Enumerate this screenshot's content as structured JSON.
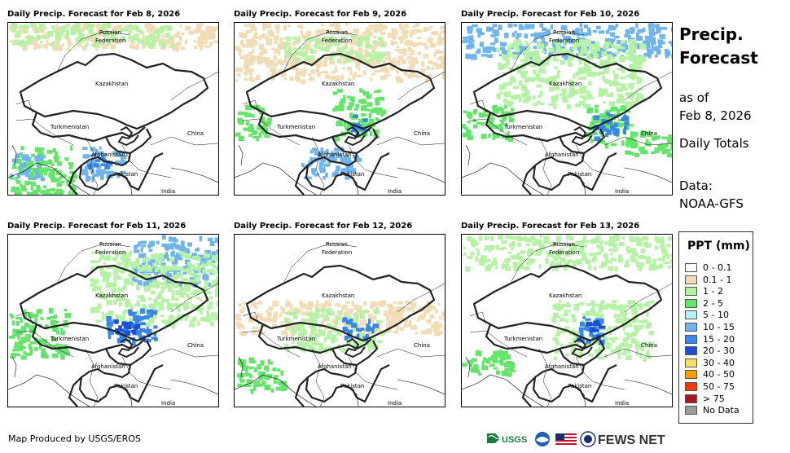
{
  "panels": [
    {
      "title": "Daily Precip. Forecast for Feb 8, 2026"
    },
    {
      "title": "Daily Precip. Forecast for Feb 9, 2026"
    },
    {
      "title": "Daily Precip. Forecast for Feb 10, 2026"
    },
    {
      "title": "Daily Precip. Forecast for Feb 11, 2026"
    },
    {
      "title": "Daily Precip. Forecast for Feb 12, 2026"
    },
    {
      "title": "Daily Precip. Forecast for Feb 13, 2026"
    }
  ],
  "map_labels": {
    "russia_1": "Russian",
    "russia_2": "Federation",
    "kazakhstan": "Kazakhstan",
    "turkmenistan": "Turkmenistan",
    "china": "China",
    "afghanistan": "Afghanistan",
    "pakistan": "Pakistan",
    "india": "India"
  },
  "side": {
    "title_1": "Precip.",
    "title_2": "Forecast",
    "asof_1": "as of",
    "asof_2": "Feb 8, 2026",
    "totals": "Daily Totals",
    "data_1": "Data:",
    "data_2": "NOAA-GFS"
  },
  "legend": {
    "title": "PPT (mm)",
    "items": [
      {
        "label": "0 - 0.1",
        "color": "#ffffff"
      },
      {
        "label": "0.1 - 1",
        "color": "#f1dcb6"
      },
      {
        "label": "1 - 2",
        "color": "#b6f2a6"
      },
      {
        "label": "2 - 5",
        "color": "#64e46a"
      },
      {
        "label": "5 - 10",
        "color": "#b8f0f6"
      },
      {
        "label": "10 - 15",
        "color": "#6fb4ec"
      },
      {
        "label": "15 - 20",
        "color": "#3a86e8"
      },
      {
        "label": "20 - 30",
        "color": "#1a4fd6"
      },
      {
        "label": "30 - 40",
        "color": "#f8e06a"
      },
      {
        "label": "40 - 50",
        "color": "#f5a000"
      },
      {
        "label": "50 - 75",
        "color": "#f03a0a"
      },
      {
        "label": "> 75",
        "color": "#a81a1a"
      },
      {
        "label": "No Data",
        "color": "#9a9a9a"
      }
    ]
  },
  "credit": "Map Produced by USGS/EROS",
  "logos": {
    "usgs": "USGS",
    "fews": "FEWS NET"
  }
}
